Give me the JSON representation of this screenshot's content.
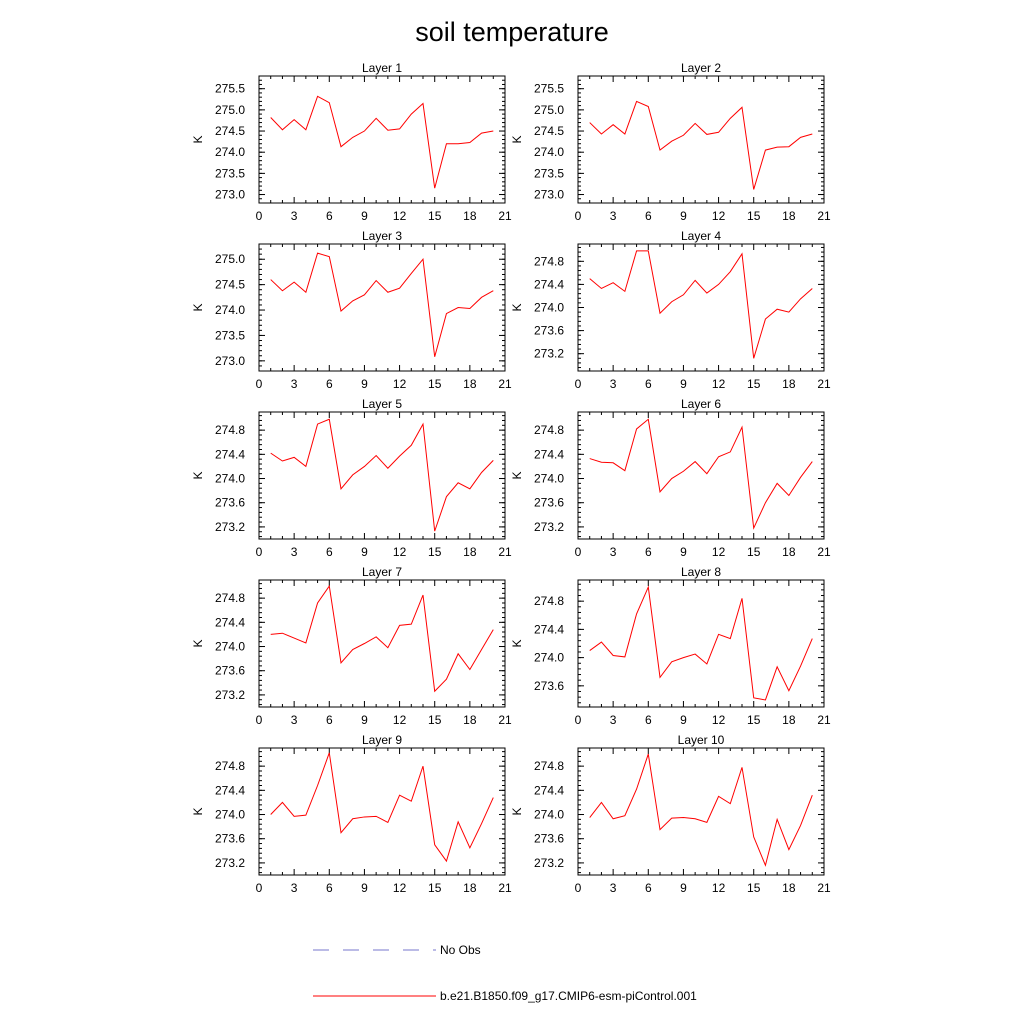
{
  "figure": {
    "title": "soil temperature",
    "legend": {
      "position": "bottom",
      "entries": [
        {
          "label": "No Obs",
          "style": "dashed",
          "color": "#7777cc"
        },
        {
          "label": "b.e21.B1850.f09_g17.CMIP6-esm-piControl.001",
          "style": "solid",
          "color": "#ff0000"
        }
      ]
    }
  },
  "chart_data": [
    {
      "type": "line",
      "title": "Layer 1",
      "xlabel": "",
      "ylabel": "K",
      "xlim": [
        0,
        21
      ],
      "ylim": [
        272.8,
        275.8
      ],
      "xticks": [
        "0",
        "3",
        "6",
        "9",
        "12",
        "15",
        "18",
        "21"
      ],
      "yticks": [
        "273.0",
        "273.5",
        "274.0",
        "274.5",
        "275.0",
        "275.5"
      ],
      "x": [
        1,
        2,
        3,
        4,
        5,
        6,
        7,
        8,
        9,
        10,
        11,
        12,
        13,
        14,
        15,
        16,
        17,
        18,
        19,
        20
      ],
      "series": [
        {
          "name": "b.e21.B1850.f09_g17.CMIP6-esm-piControl.001",
          "color": "#ff0000",
          "values": [
            274.82,
            274.53,
            274.77,
            274.53,
            275.32,
            275.17,
            274.13,
            274.35,
            274.5,
            274.8,
            274.52,
            274.55,
            274.9,
            275.15,
            273.15,
            274.2,
            274.2,
            274.23,
            274.45,
            274.5
          ]
        }
      ]
    },
    {
      "type": "line",
      "title": "Layer 2",
      "xlabel": "",
      "ylabel": "K",
      "xlim": [
        0,
        21
      ],
      "ylim": [
        272.8,
        275.8
      ],
      "xticks": [
        "0",
        "3",
        "6",
        "9",
        "12",
        "15",
        "18",
        "21"
      ],
      "yticks": [
        "273.0",
        "273.5",
        "274.0",
        "274.5",
        "275.0",
        "275.5"
      ],
      "x": [
        1,
        2,
        3,
        4,
        5,
        6,
        7,
        8,
        9,
        10,
        11,
        12,
        13,
        14,
        15,
        16,
        17,
        18,
        19,
        20
      ],
      "series": [
        {
          "name": "b.e21.B1850.f09_g17.CMIP6-esm-piControl.001",
          "color": "#ff0000",
          "values": [
            274.7,
            274.43,
            274.65,
            274.43,
            275.2,
            275.08,
            274.05,
            274.26,
            274.4,
            274.68,
            274.42,
            274.47,
            274.8,
            275.06,
            273.12,
            274.05,
            274.12,
            274.13,
            274.35,
            274.43
          ]
        }
      ]
    },
    {
      "type": "line",
      "title": "Layer 3",
      "xlabel": "",
      "ylabel": "K",
      "xlim": [
        0,
        21
      ],
      "ylim": [
        272.8,
        275.3
      ],
      "xticks": [
        "0",
        "3",
        "6",
        "9",
        "12",
        "15",
        "18",
        "21"
      ],
      "yticks": [
        "273.0",
        "273.5",
        "274.0",
        "274.5",
        "275.0"
      ],
      "x": [
        1,
        2,
        3,
        4,
        5,
        6,
        7,
        8,
        9,
        10,
        11,
        12,
        13,
        14,
        15,
        16,
        17,
        18,
        19,
        20
      ],
      "series": [
        {
          "name": "b.e21.B1850.f09_g17.CMIP6-esm-piControl.001",
          "color": "#ff0000",
          "values": [
            274.6,
            274.38,
            274.55,
            274.35,
            275.12,
            275.05,
            273.98,
            274.18,
            274.3,
            274.58,
            274.35,
            274.43,
            274.72,
            275.0,
            273.08,
            273.93,
            274.05,
            274.03,
            274.25,
            274.38
          ]
        }
      ]
    },
    {
      "type": "line",
      "title": "Layer 4",
      "xlabel": "",
      "ylabel": "K",
      "xlim": [
        0,
        21
      ],
      "ylim": [
        272.9,
        275.1
      ],
      "xticks": [
        "0",
        "3",
        "6",
        "9",
        "12",
        "15",
        "18",
        "21"
      ],
      "yticks": [
        "273.2",
        "273.6",
        "274.0",
        "274.4",
        "274.8"
      ],
      "x": [
        1,
        2,
        3,
        4,
        5,
        6,
        7,
        8,
        9,
        10,
        11,
        12,
        13,
        14,
        15,
        16,
        17,
        18,
        19,
        20
      ],
      "series": [
        {
          "name": "b.e21.B1850.f09_g17.CMIP6-esm-piControl.001",
          "color": "#ff0000",
          "values": [
            274.5,
            274.33,
            274.43,
            274.28,
            274.98,
            274.98,
            273.9,
            274.1,
            274.22,
            274.47,
            274.25,
            274.4,
            274.62,
            274.93,
            273.12,
            273.8,
            273.97,
            273.92,
            274.15,
            274.33
          ]
        }
      ]
    },
    {
      "type": "line",
      "title": "Layer 5",
      "xlabel": "",
      "ylabel": "K",
      "xlim": [
        0,
        21
      ],
      "ylim": [
        273.0,
        275.1
      ],
      "xticks": [
        "0",
        "3",
        "6",
        "9",
        "12",
        "15",
        "18",
        "21"
      ],
      "yticks": [
        "273.2",
        "273.6",
        "274.0",
        "274.4",
        "274.8"
      ],
      "x": [
        1,
        2,
        3,
        4,
        5,
        6,
        7,
        8,
        9,
        10,
        11,
        12,
        13,
        14,
        15,
        16,
        17,
        18,
        19,
        20
      ],
      "series": [
        {
          "name": "b.e21.B1850.f09_g17.CMIP6-esm-piControl.001",
          "color": "#ff0000",
          "values": [
            274.42,
            274.29,
            274.35,
            274.2,
            274.9,
            274.98,
            273.83,
            274.06,
            274.2,
            274.38,
            274.17,
            274.37,
            274.55,
            274.9,
            273.13,
            273.7,
            273.93,
            273.83,
            274.1,
            274.3
          ]
        }
      ]
    },
    {
      "type": "line",
      "title": "Layer 6",
      "xlabel": "",
      "ylabel": "K",
      "xlim": [
        0,
        21
      ],
      "ylim": [
        273.0,
        275.1
      ],
      "xticks": [
        "0",
        "3",
        "6",
        "9",
        "12",
        "15",
        "18",
        "21"
      ],
      "yticks": [
        "273.2",
        "273.6",
        "274.0",
        "274.4",
        "274.8"
      ],
      "x": [
        1,
        2,
        3,
        4,
        5,
        6,
        7,
        8,
        9,
        10,
        11,
        12,
        13,
        14,
        15,
        16,
        17,
        18,
        19,
        20
      ],
      "series": [
        {
          "name": "b.e21.B1850.f09_g17.CMIP6-esm-piControl.001",
          "color": "#ff0000",
          "values": [
            274.33,
            274.27,
            274.26,
            274.13,
            274.82,
            274.98,
            273.78,
            274.0,
            274.12,
            274.28,
            274.08,
            274.36,
            274.44,
            274.85,
            273.18,
            273.6,
            273.92,
            273.72,
            274.02,
            274.28
          ]
        }
      ]
    },
    {
      "type": "line",
      "title": "Layer 7",
      "xlabel": "",
      "ylabel": "K",
      "xlim": [
        0,
        21
      ],
      "ylim": [
        273.0,
        275.1
      ],
      "xticks": [
        "0",
        "3",
        "6",
        "9",
        "12",
        "15",
        "18",
        "21"
      ],
      "yticks": [
        "273.2",
        "273.6",
        "274.0",
        "274.4",
        "274.8"
      ],
      "x": [
        1,
        2,
        3,
        4,
        5,
        6,
        7,
        8,
        9,
        10,
        11,
        12,
        13,
        14,
        15,
        16,
        17,
        18,
        19,
        20
      ],
      "series": [
        {
          "name": "b.e21.B1850.f09_g17.CMIP6-esm-piControl.001",
          "color": "#ff0000",
          "values": [
            274.2,
            274.22,
            274.14,
            274.06,
            274.72,
            275.0,
            273.73,
            273.95,
            274.05,
            274.16,
            273.98,
            274.35,
            274.37,
            274.85,
            273.26,
            273.46,
            273.88,
            273.62,
            273.95,
            274.28
          ]
        }
      ]
    },
    {
      "type": "line",
      "title": "Layer 8",
      "xlabel": "",
      "ylabel": "K",
      "xlim": [
        0,
        21
      ],
      "ylim": [
        273.3,
        275.1
      ],
      "xticks": [
        "0",
        "3",
        "6",
        "9",
        "12",
        "15",
        "18",
        "21"
      ],
      "yticks": [
        "273.6",
        "274.0",
        "274.4",
        "274.8"
      ],
      "x": [
        1,
        2,
        3,
        4,
        5,
        6,
        7,
        8,
        9,
        10,
        11,
        12,
        13,
        14,
        15,
        16,
        17,
        18,
        19,
        20
      ],
      "series": [
        {
          "name": "b.e21.B1850.f09_g17.CMIP6-esm-piControl.001",
          "color": "#ff0000",
          "values": [
            274.1,
            274.22,
            274.03,
            274.01,
            274.62,
            275.0,
            273.72,
            273.94,
            274.0,
            274.05,
            273.91,
            274.33,
            274.27,
            274.84,
            273.43,
            273.4,
            273.87,
            273.53,
            273.88,
            274.27
          ]
        }
      ]
    },
    {
      "type": "line",
      "title": "Layer 9",
      "xlabel": "",
      "ylabel": "K",
      "xlim": [
        0,
        21
      ],
      "ylim": [
        273.0,
        275.1
      ],
      "xticks": [
        "0",
        "3",
        "6",
        "9",
        "12",
        "15",
        "18",
        "21"
      ],
      "yticks": [
        "273.2",
        "273.6",
        "274.0",
        "274.4",
        "274.8"
      ],
      "x": [
        1,
        2,
        3,
        4,
        5,
        6,
        7,
        8,
        9,
        10,
        11,
        12,
        13,
        14,
        15,
        16,
        17,
        18,
        19,
        20
      ],
      "series": [
        {
          "name": "b.e21.B1850.f09_g17.CMIP6-esm-piControl.001",
          "color": "#ff0000",
          "values": [
            274.0,
            274.2,
            273.97,
            273.99,
            274.48,
            275.02,
            273.7,
            273.93,
            273.96,
            273.97,
            273.87,
            274.32,
            274.22,
            274.8,
            273.5,
            273.23,
            273.88,
            273.45,
            273.85,
            274.28
          ]
        }
      ]
    },
    {
      "type": "line",
      "title": "Layer 10",
      "xlabel": "",
      "ylabel": "K",
      "xlim": [
        0,
        21
      ],
      "ylim": [
        273.0,
        275.1
      ],
      "xticks": [
        "0",
        "3",
        "6",
        "9",
        "12",
        "15",
        "18",
        "21"
      ],
      "yticks": [
        "273.2",
        "273.6",
        "274.0",
        "274.4",
        "274.8"
      ],
      "x": [
        1,
        2,
        3,
        4,
        5,
        6,
        7,
        8,
        9,
        10,
        11,
        12,
        13,
        14,
        15,
        16,
        17,
        18,
        19,
        20
      ],
      "series": [
        {
          "name": "b.e21.B1850.f09_g17.CMIP6-esm-piControl.001",
          "color": "#ff0000",
          "values": [
            273.95,
            274.2,
            273.93,
            273.98,
            274.42,
            275.0,
            273.75,
            273.94,
            273.95,
            273.93,
            273.87,
            274.3,
            274.18,
            274.78,
            273.63,
            273.16,
            273.92,
            273.42,
            273.82,
            274.32
          ]
        }
      ]
    }
  ]
}
